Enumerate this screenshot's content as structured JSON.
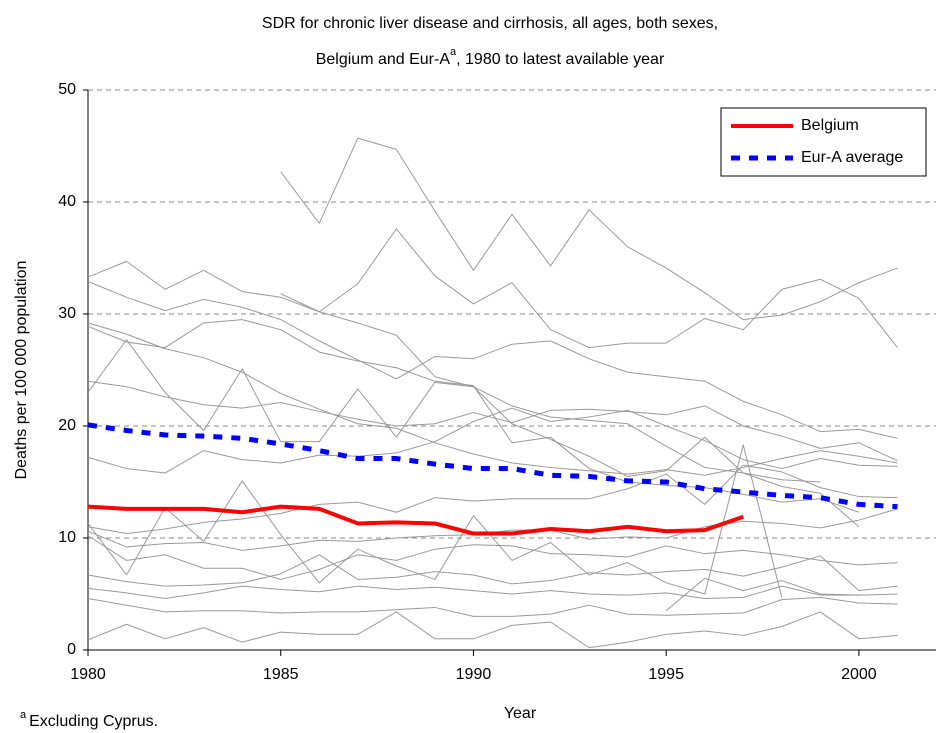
{
  "chart_data": {
    "type": "line",
    "title": {
      "line1": "SDR for chronic liver disease and cirrhosis, all ages, both sexes,",
      "line2_start": "Belgium and Eur-A",
      "superscript": "a",
      "line2_end": ", 1980 to latest available year"
    },
    "x_label": "Year",
    "y_label": "Deaths per 100 000 population",
    "footnote": {
      "marker": "a",
      "text": "Excluding Cyprus."
    },
    "x": [
      1980,
      1981,
      1982,
      1983,
      1984,
      1985,
      1986,
      1987,
      1988,
      1989,
      1990,
      1991,
      1992,
      1993,
      1994,
      1995,
      1996,
      1997,
      1998,
      1999,
      2000,
      2001
    ],
    "xlim": [
      1980,
      2002
    ],
    "xticks": [
      1980,
      1985,
      1990,
      1995,
      2000
    ],
    "ylim": [
      0,
      50
    ],
    "yticks": [
      0,
      10,
      20,
      30,
      40,
      50
    ],
    "grid": true,
    "legend": "top-right",
    "series": [
      {
        "color": "#999999",
        "values": [
          null,
          null,
          null,
          null,
          null,
          42.7,
          38.1,
          45.7,
          44.7,
          39.2,
          33.9,
          38.9,
          34.3,
          39.3,
          36.0,
          34.1,
          31.9,
          29.5,
          29.9,
          31.1,
          32.8,
          34.1
        ]
      },
      {
        "color": "#999999",
        "values": [
          33.3,
          34.7,
          32.2,
          33.9,
          32.0,
          31.5,
          30.2,
          32.7,
          37.6,
          33.4,
          30.9,
          32.8,
          28.6,
          27.0,
          27.4,
          27.4,
          29.6,
          28.6,
          32.2,
          33.1,
          31.4,
          27.0
        ]
      },
      {
        "color": "#999999",
        "values": [
          32.9,
          31.5,
          30.3,
          31.3,
          30.6,
          29.5,
          27.6,
          25.9,
          24.2,
          26.2,
          26.0,
          27.3,
          27.6,
          26.0,
          24.8,
          24.4,
          24.0,
          22.2,
          21.0,
          19.5,
          19.7,
          18.9
        ]
      },
      {
        "color": "#999999",
        "values": [
          null,
          null,
          null,
          null,
          null,
          31.8,
          30.2,
          29.2,
          28.1,
          24.4,
          23.5,
          21.8,
          20.8,
          20.5,
          20.2,
          18.2,
          16.3,
          15.8,
          15.2,
          15.0,
          null,
          null
        ]
      },
      {
        "color": "#999999",
        "values": [
          29.2,
          28.2,
          26.9,
          26.1,
          24.8,
          22.9,
          21.5,
          20.2,
          19.8,
          18.5,
          17.5,
          16.7,
          16.3,
          16.0,
          15.7,
          16.1,
          15.6,
          16.3,
          17.1,
          17.8,
          17.3,
          16.7
        ]
      },
      {
        "color": "#999999",
        "values": [
          28.9,
          27.5,
          27.0,
          29.2,
          29.5,
          28.6,
          26.6,
          25.8,
          25.2,
          24.0,
          23.6,
          18.5,
          19.0,
          16.2,
          15.0,
          14.7,
          14.5,
          13.9,
          13.2,
          13.5,
          12.3,
          null
        ]
      },
      {
        "color": "#999999",
        "values": [
          23.0,
          27.7,
          23.0,
          19.6,
          25.1,
          18.6,
          18.6,
          23.3,
          19.0,
          23.9,
          23.5,
          20.2,
          18.8,
          17.3,
          15.5,
          16.0,
          19.0,
          15.8,
          14.6,
          14.0,
          11.0,
          null
        ]
      },
      {
        "color": "#999999",
        "values": [
          24.0,
          23.5,
          22.6,
          21.9,
          21.6,
          22.1,
          21.3,
          20.6,
          20.0,
          20.2,
          21.2,
          20.3,
          21.4,
          21.5,
          21.3,
          21.0,
          21.8,
          20.0,
          19.1,
          18.0,
          18.5,
          16.9
        ]
      },
      {
        "color": "#999999",
        "values": [
          17.2,
          16.2,
          15.8,
          17.8,
          17.0,
          16.7,
          17.4,
          17.3,
          17.6,
          18.6,
          20.4,
          21.6,
          20.4,
          20.8,
          21.4,
          20.0,
          18.7,
          17.0,
          16.2,
          17.1,
          16.5,
          16.4
        ]
      },
      {
        "color": "#999999",
        "values": [
          11.3,
          6.7,
          12.7,
          9.7,
          15.1,
          10.3,
          6.0,
          9.0,
          7.5,
          6.3,
          12.0,
          8.0,
          9.6,
          6.7,
          7.8,
          6.0,
          5.0,
          18.3,
          4.7,
          null,
          null,
          null
        ]
      },
      {
        "color": "#999999",
        "values": [
          11.0,
          10.4,
          10.8,
          11.4,
          11.7,
          12.2,
          13.0,
          13.2,
          12.3,
          13.6,
          13.3,
          13.5,
          13.5,
          13.5,
          14.4,
          15.7,
          13.0,
          16.5,
          15.9,
          14.5,
          13.7,
          13.6
        ]
      },
      {
        "color": "#999999",
        "values": [
          10.6,
          9.2,
          9.5,
          9.6,
          8.9,
          9.3,
          9.8,
          9.7,
          10.0,
          10.2,
          10.3,
          10.7,
          10.7,
          9.9,
          10.1,
          10.0,
          11.0,
          11.5,
          11.3,
          10.9,
          11.6,
          12.6
        ]
      },
      {
        "color": "#999999",
        "values": [
          10.2,
          8.0,
          8.5,
          7.3,
          7.3,
          6.3,
          7.2,
          8.5,
          8.0,
          9.0,
          9.4,
          9.3,
          8.6,
          8.5,
          8.3,
          9.3,
          8.6,
          8.9,
          8.5,
          8.0,
          7.6,
          7.8
        ]
      },
      {
        "color": "#999999",
        "values": [
          6.7,
          6.1,
          5.7,
          5.8,
          6.0,
          6.8,
          8.5,
          6.3,
          6.5,
          7.0,
          6.7,
          5.9,
          6.2,
          6.9,
          6.7,
          7.0,
          7.2,
          6.6,
          7.4,
          8.4,
          5.3,
          5.7
        ]
      },
      {
        "color": "#999999",
        "values": [
          5.5,
          5.1,
          4.6,
          5.1,
          5.7,
          5.4,
          5.2,
          5.7,
          5.4,
          5.6,
          5.3,
          5.0,
          5.3,
          5.0,
          4.9,
          5.1,
          4.6,
          4.7,
          5.7,
          4.9,
          4.9,
          5.0
        ]
      },
      {
        "color": "#999999",
        "values": [
          4.6,
          4.0,
          3.4,
          3.5,
          3.5,
          3.3,
          3.4,
          3.4,
          3.6,
          3.8,
          3.0,
          3.0,
          3.2,
          4.0,
          3.2,
          3.1,
          3.2,
          3.3,
          4.5,
          4.7,
          4.2,
          4.1
        ]
      },
      {
        "color": "#999999",
        "values": [
          0.9,
          2.3,
          1.0,
          2.0,
          0.7,
          1.6,
          1.4,
          1.4,
          3.4,
          1.0,
          1.0,
          2.2,
          2.5,
          0.2,
          0.7,
          1.4,
          1.7,
          1.3,
          2.1,
          3.4,
          1.0,
          1.3
        ]
      },
      {
        "color": "#999999",
        "values": [
          null,
          null,
          null,
          null,
          null,
          null,
          null,
          null,
          null,
          null,
          null,
          null,
          null,
          null,
          null,
          3.5,
          6.4,
          5.3,
          6.2,
          5.0,
          4.9,
          null
        ]
      },
      {
        "name": "Belgium",
        "color": "#ff0000",
        "dash": false,
        "values": [
          12.8,
          12.6,
          12.6,
          12.6,
          12.3,
          12.8,
          12.6,
          11.3,
          11.4,
          11.3,
          10.4,
          10.4,
          10.8,
          10.6,
          11.0,
          10.6,
          10.7,
          11.9,
          null,
          null,
          null,
          null
        ]
      },
      {
        "name": "Eur-A average",
        "color": "#0000ff",
        "dash": true,
        "values": [
          20.1,
          19.6,
          19.2,
          19.1,
          18.9,
          18.4,
          17.8,
          17.1,
          17.1,
          16.6,
          16.2,
          16.2,
          15.6,
          15.5,
          15.1,
          15.0,
          14.4,
          14.1,
          13.8,
          13.6,
          13.0,
          12.8
        ]
      }
    ]
  }
}
